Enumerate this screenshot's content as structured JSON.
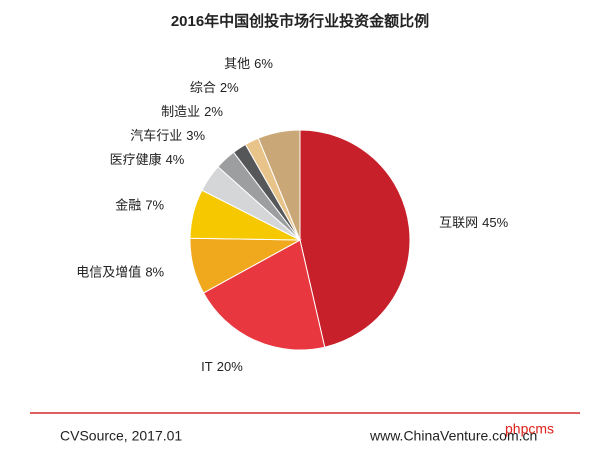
{
  "chart_data": {
    "type": "pie",
    "title": "2016年中国创投市场行业投资金额比例",
    "categories": [
      "互联网",
      "IT",
      "电信及增值",
      "金融",
      "医疗健康",
      "汽车行业",
      "制造业",
      "综合",
      "其他"
    ],
    "values": [
      45,
      20,
      8,
      7,
      4,
      3,
      2,
      2,
      6
    ],
    "value_labels": [
      "45%",
      "20%",
      "8%",
      "7%",
      "4%",
      "3%",
      "2%",
      "2%",
      "6%"
    ],
    "colors": [
      "#c8202a",
      "#e8373f",
      "#f0a81c",
      "#f5c800",
      "#d4d6d8",
      "#9c9ea0",
      "#555759",
      "#e8c48a",
      "#c9a776"
    ]
  },
  "footer": {
    "source": "CVSource, 2017.01",
    "website": "www.ChinaVenture.com.cn",
    "watermark": "phpcms"
  }
}
